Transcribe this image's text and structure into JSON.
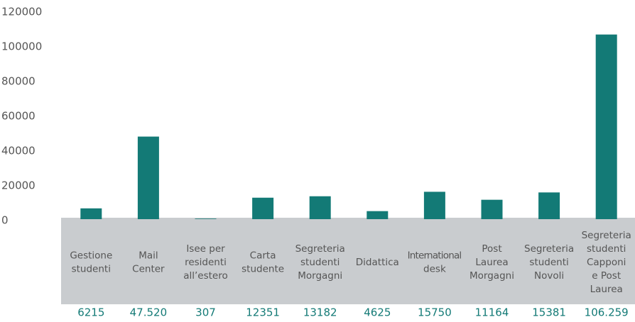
{
  "chart_data": {
    "type": "bar",
    "categories": [
      [
        "Gestione",
        "studenti"
      ],
      [
        "Mail",
        "Center"
      ],
      [
        "Isee per",
        "residenti",
        "all’estero"
      ],
      [
        "Carta",
        "studente"
      ],
      [
        "Segreteria",
        "studenti",
        "Morgagni"
      ],
      [
        "Didattica"
      ],
      [
        "International",
        "desk"
      ],
      [
        "Post",
        "Laurea",
        "Morgagni"
      ],
      [
        "Segreteria",
        "studenti",
        "Novoli"
      ],
      [
        "Segreteria",
        "studenti",
        "Capponi",
        "e Post",
        "Laurea"
      ]
    ],
    "values": [
      6215,
      47520,
      307,
      12351,
      13182,
      4625,
      15750,
      11164,
      15381,
      106259
    ],
    "value_labels": [
      "6215",
      "47.520",
      "307",
      "12351",
      "13182",
      "4625",
      "15750",
      "11164",
      "15381",
      "106.259"
    ],
    "color": "#137a76",
    "ylim": [
      0,
      120000
    ],
    "yticks": [
      0,
      20000,
      40000,
      60000,
      80000,
      100000,
      120000
    ],
    "grid": false
  }
}
